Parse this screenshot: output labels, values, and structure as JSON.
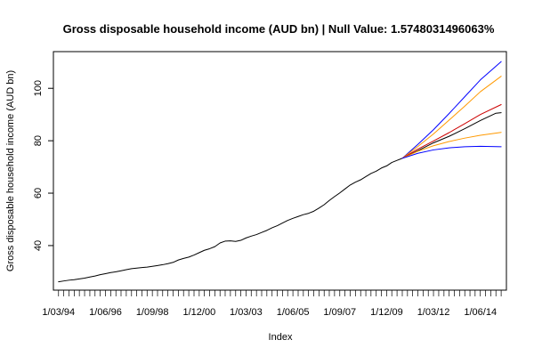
{
  "chart_data": {
    "type": "line",
    "title": "Gross disposable household income (AUD bn) | Null Value: 1.5748031496063%",
    "xlabel": "Index",
    "ylabel": "Gross disposable household income (AUD bn)",
    "ylim": [
      23,
      114
    ],
    "y_ticks": [
      40,
      60,
      80,
      100
    ],
    "x_tick_labels": [
      {
        "label": "1/03/94",
        "date": "1994-03-01"
      },
      {
        "label": "1/06/96",
        "date": "1996-06-01"
      },
      {
        "label": "1/09/98",
        "date": "1998-09-01"
      },
      {
        "label": "1/12/00",
        "date": "2000-12-01"
      },
      {
        "label": "1/03/03",
        "date": "2003-03-01"
      },
      {
        "label": "1/06/05",
        "date": "2005-06-01"
      },
      {
        "label": "1/09/07",
        "date": "2007-09-01"
      },
      {
        "label": "1/12/09",
        "date": "2009-12-01"
      },
      {
        "label": "1/03/12",
        "date": "2012-03-01"
      },
      {
        "label": "1/06/14",
        "date": "2014-06-01"
      }
    ],
    "x_range": [
      "1993-12-01",
      "2015-09-01"
    ],
    "minor_ticks": {
      "start": "1994-03-01",
      "end": "2015-06-01",
      "step_months": 3
    },
    "grid": false,
    "series": [
      {
        "role": "history",
        "color": "#000000",
        "points": [
          [
            "1994-03-01",
            26.2
          ],
          [
            "1994-06-01",
            26.5
          ],
          [
            "1994-09-01",
            26.8
          ],
          [
            "1994-12-01",
            27.0
          ],
          [
            "1995-03-01",
            27.3
          ],
          [
            "1995-06-01",
            27.6
          ],
          [
            "1995-09-01",
            28.0
          ],
          [
            "1995-12-01",
            28.4
          ],
          [
            "1996-03-01",
            28.9
          ],
          [
            "1996-06-01",
            29.3
          ],
          [
            "1996-09-01",
            29.7
          ],
          [
            "1996-12-01",
            30.0
          ],
          [
            "1997-03-01",
            30.4
          ],
          [
            "1997-06-01",
            30.8
          ],
          [
            "1997-09-01",
            31.2
          ],
          [
            "1997-12-01",
            31.4
          ],
          [
            "1998-03-01",
            31.6
          ],
          [
            "1998-06-01",
            31.8
          ],
          [
            "1998-09-01",
            32.1
          ],
          [
            "1998-12-01",
            32.4
          ],
          [
            "1999-03-01",
            32.7
          ],
          [
            "1999-06-01",
            33.1
          ],
          [
            "1999-09-01",
            33.6
          ],
          [
            "1999-12-01",
            34.5
          ],
          [
            "2000-03-01",
            35.1
          ],
          [
            "2000-06-01",
            35.6
          ],
          [
            "2000-09-01",
            36.4
          ],
          [
            "2000-12-01",
            37.3
          ],
          [
            "2001-03-01",
            38.2
          ],
          [
            "2001-06-01",
            38.8
          ],
          [
            "2001-09-01",
            39.6
          ],
          [
            "2001-12-01",
            41.0
          ],
          [
            "2002-03-01",
            41.7
          ],
          [
            "2002-06-01",
            41.8
          ],
          [
            "2002-09-01",
            41.6
          ],
          [
            "2002-12-01",
            42.0
          ],
          [
            "2003-03-01",
            42.9
          ],
          [
            "2003-06-01",
            43.6
          ],
          [
            "2003-09-01",
            44.2
          ],
          [
            "2003-12-01",
            45.0
          ],
          [
            "2004-03-01",
            45.8
          ],
          [
            "2004-06-01",
            46.8
          ],
          [
            "2004-09-01",
            47.6
          ],
          [
            "2004-12-01",
            48.6
          ],
          [
            "2005-03-01",
            49.6
          ],
          [
            "2005-06-01",
            50.4
          ],
          [
            "2005-09-01",
            51.1
          ],
          [
            "2005-12-01",
            51.8
          ],
          [
            "2006-03-01",
            52.3
          ],
          [
            "2006-06-01",
            53.1
          ],
          [
            "2006-09-01",
            54.3
          ],
          [
            "2006-12-01",
            55.6
          ],
          [
            "2007-03-01",
            57.2
          ],
          [
            "2007-06-01",
            58.7
          ],
          [
            "2007-09-01",
            60.1
          ],
          [
            "2007-12-01",
            61.6
          ],
          [
            "2008-03-01",
            63.1
          ],
          [
            "2008-06-01",
            64.2
          ],
          [
            "2008-09-01",
            65.1
          ],
          [
            "2008-12-01",
            66.3
          ],
          [
            "2009-03-01",
            67.5
          ],
          [
            "2009-06-01",
            68.4
          ],
          [
            "2009-09-01",
            69.6
          ],
          [
            "2009-12-01",
            70.4
          ],
          [
            "2010-03-01",
            71.7
          ],
          [
            "2010-06-01",
            72.5
          ],
          [
            "2010-09-01",
            73.3
          ]
        ]
      },
      {
        "role": "forecast",
        "color": "#000000",
        "points": [
          [
            "2010-09-01",
            73.3
          ],
          [
            "2011-06-01",
            76.2
          ],
          [
            "2012-03-01",
            79.2
          ],
          [
            "2012-12-01",
            81.7
          ],
          [
            "2013-09-01",
            84.6
          ],
          [
            "2014-06-01",
            87.7
          ],
          [
            "2015-03-01",
            90.5
          ],
          [
            "2015-06-01",
            90.7
          ]
        ]
      },
      {
        "role": "upper-95",
        "color": "#0000ff",
        "points": [
          [
            "2010-09-01",
            73.3
          ],
          [
            "2011-06-01",
            78.6
          ],
          [
            "2012-03-01",
            84.2
          ],
          [
            "2012-12-01",
            90.4
          ],
          [
            "2013-09-01",
            96.8
          ],
          [
            "2014-06-01",
            103.2
          ],
          [
            "2015-06-01",
            110.2
          ]
        ]
      },
      {
        "role": "upper-80",
        "color": "#ff9900",
        "points": [
          [
            "2010-09-01",
            73.3
          ],
          [
            "2011-06-01",
            77.8
          ],
          [
            "2012-03-01",
            82.6
          ],
          [
            "2012-12-01",
            87.9
          ],
          [
            "2013-09-01",
            93.2
          ],
          [
            "2014-06-01",
            98.7
          ],
          [
            "2015-06-01",
            104.6
          ]
        ]
      },
      {
        "role": "fitted",
        "color": "#cc0000",
        "points": [
          [
            "2010-09-01",
            73.3
          ],
          [
            "2011-06-01",
            76.8
          ],
          [
            "2012-03-01",
            79.9
          ],
          [
            "2012-12-01",
            83.1
          ],
          [
            "2013-09-01",
            86.5
          ],
          [
            "2014-06-01",
            90.0
          ],
          [
            "2015-06-01",
            93.8
          ]
        ]
      },
      {
        "role": "lower-80",
        "color": "#ff9900",
        "points": [
          [
            "2010-09-01",
            73.3
          ],
          [
            "2011-06-01",
            76.0
          ],
          [
            "2012-03-01",
            78.1
          ],
          [
            "2012-12-01",
            79.7
          ],
          [
            "2013-09-01",
            81.0
          ],
          [
            "2014-06-01",
            82.1
          ],
          [
            "2015-06-01",
            83.2
          ]
        ]
      },
      {
        "role": "lower-95",
        "color": "#0000ff",
        "points": [
          [
            "2010-09-01",
            73.3
          ],
          [
            "2011-06-01",
            75.2
          ],
          [
            "2012-03-01",
            76.5
          ],
          [
            "2012-12-01",
            77.3
          ],
          [
            "2013-09-01",
            77.7
          ],
          [
            "2014-06-01",
            77.9
          ],
          [
            "2015-06-01",
            77.7
          ]
        ]
      }
    ]
  }
}
